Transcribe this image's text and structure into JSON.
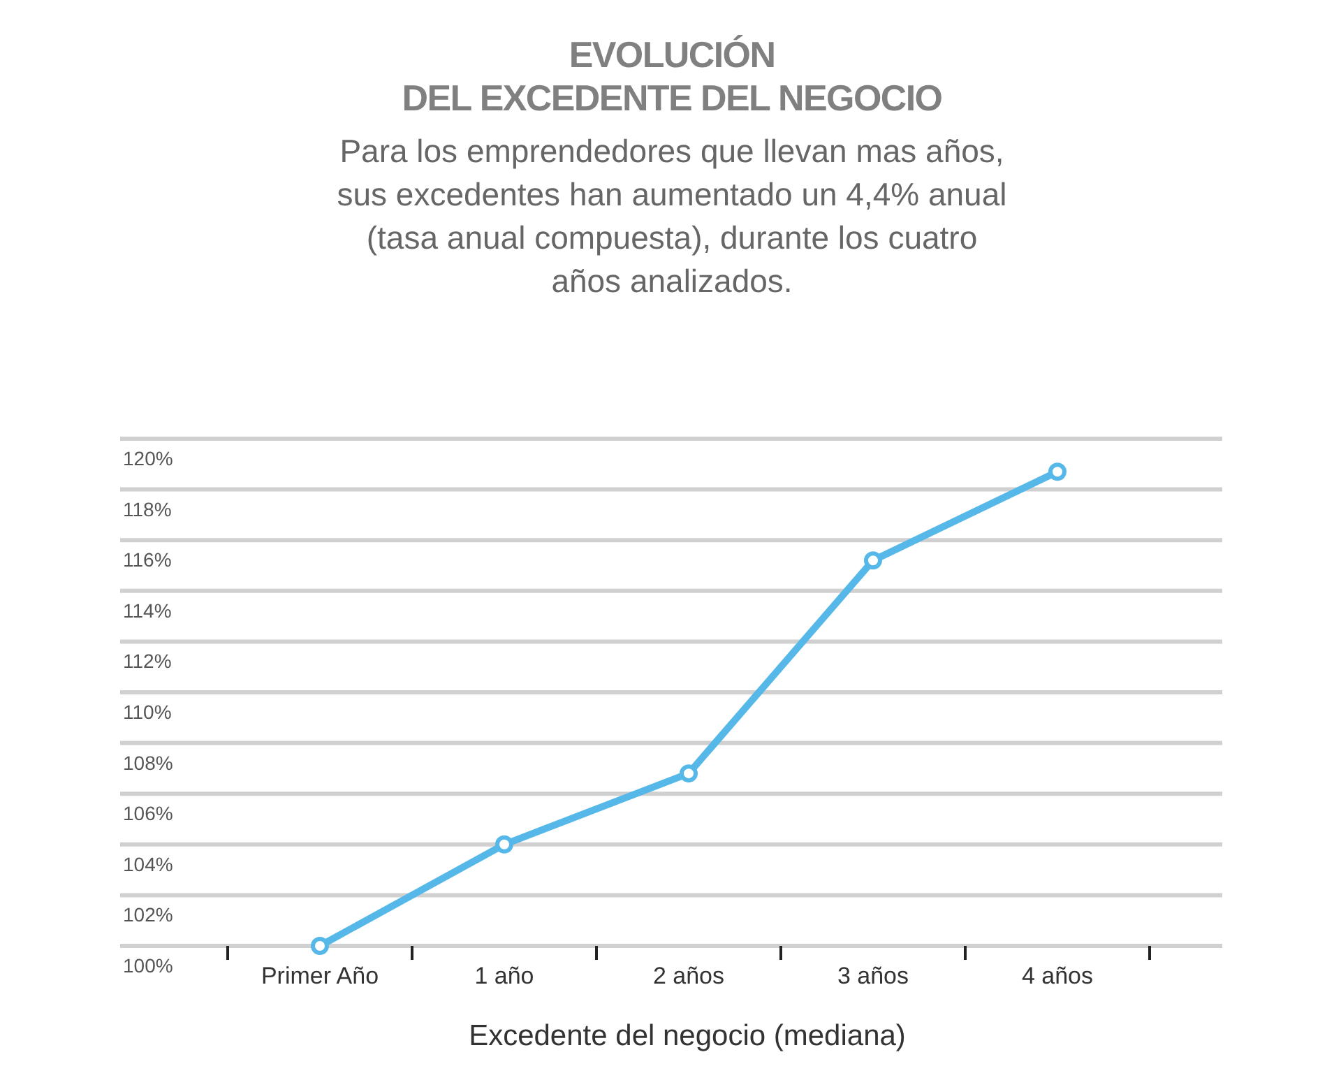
{
  "chart_data": {
    "type": "line",
    "title": "EVOLUCIÓN\nDEL EXCEDENTE DEL NEGOCIO",
    "subtitle": "Para los emprendedores que llevan mas años,\nsus excedentes han aumentado un 4,4% anual\n(tasa anual compuesta), durante los cuatro\naños analizados.",
    "xlabel": "Excedente del negocio (mediana)",
    "categories": [
      "Primer Año",
      "1 año",
      "2 años",
      "3 años",
      "4 años"
    ],
    "series": [
      {
        "color": "#55b8e8",
        "values": [
          100,
          104,
          106.8,
          115.2,
          118.7
        ]
      }
    ],
    "ylim": [
      100,
      120
    ],
    "yticks": [
      {
        "value": 100,
        "label": "100%"
      },
      {
        "value": 102,
        "label": "102%"
      },
      {
        "value": 104,
        "label": "104%"
      },
      {
        "value": 106,
        "label": "106%"
      },
      {
        "value": 108,
        "label": "108%"
      },
      {
        "value": 110,
        "label": "110%"
      },
      {
        "value": 112,
        "label": "112%"
      },
      {
        "value": 114,
        "label": "114%"
      },
      {
        "value": 116,
        "label": "116%"
      },
      {
        "value": 118,
        "label": "118%"
      },
      {
        "value": 120,
        "label": "120%"
      }
    ],
    "grid": "y",
    "marker": "circle",
    "line_style": "solid"
  }
}
